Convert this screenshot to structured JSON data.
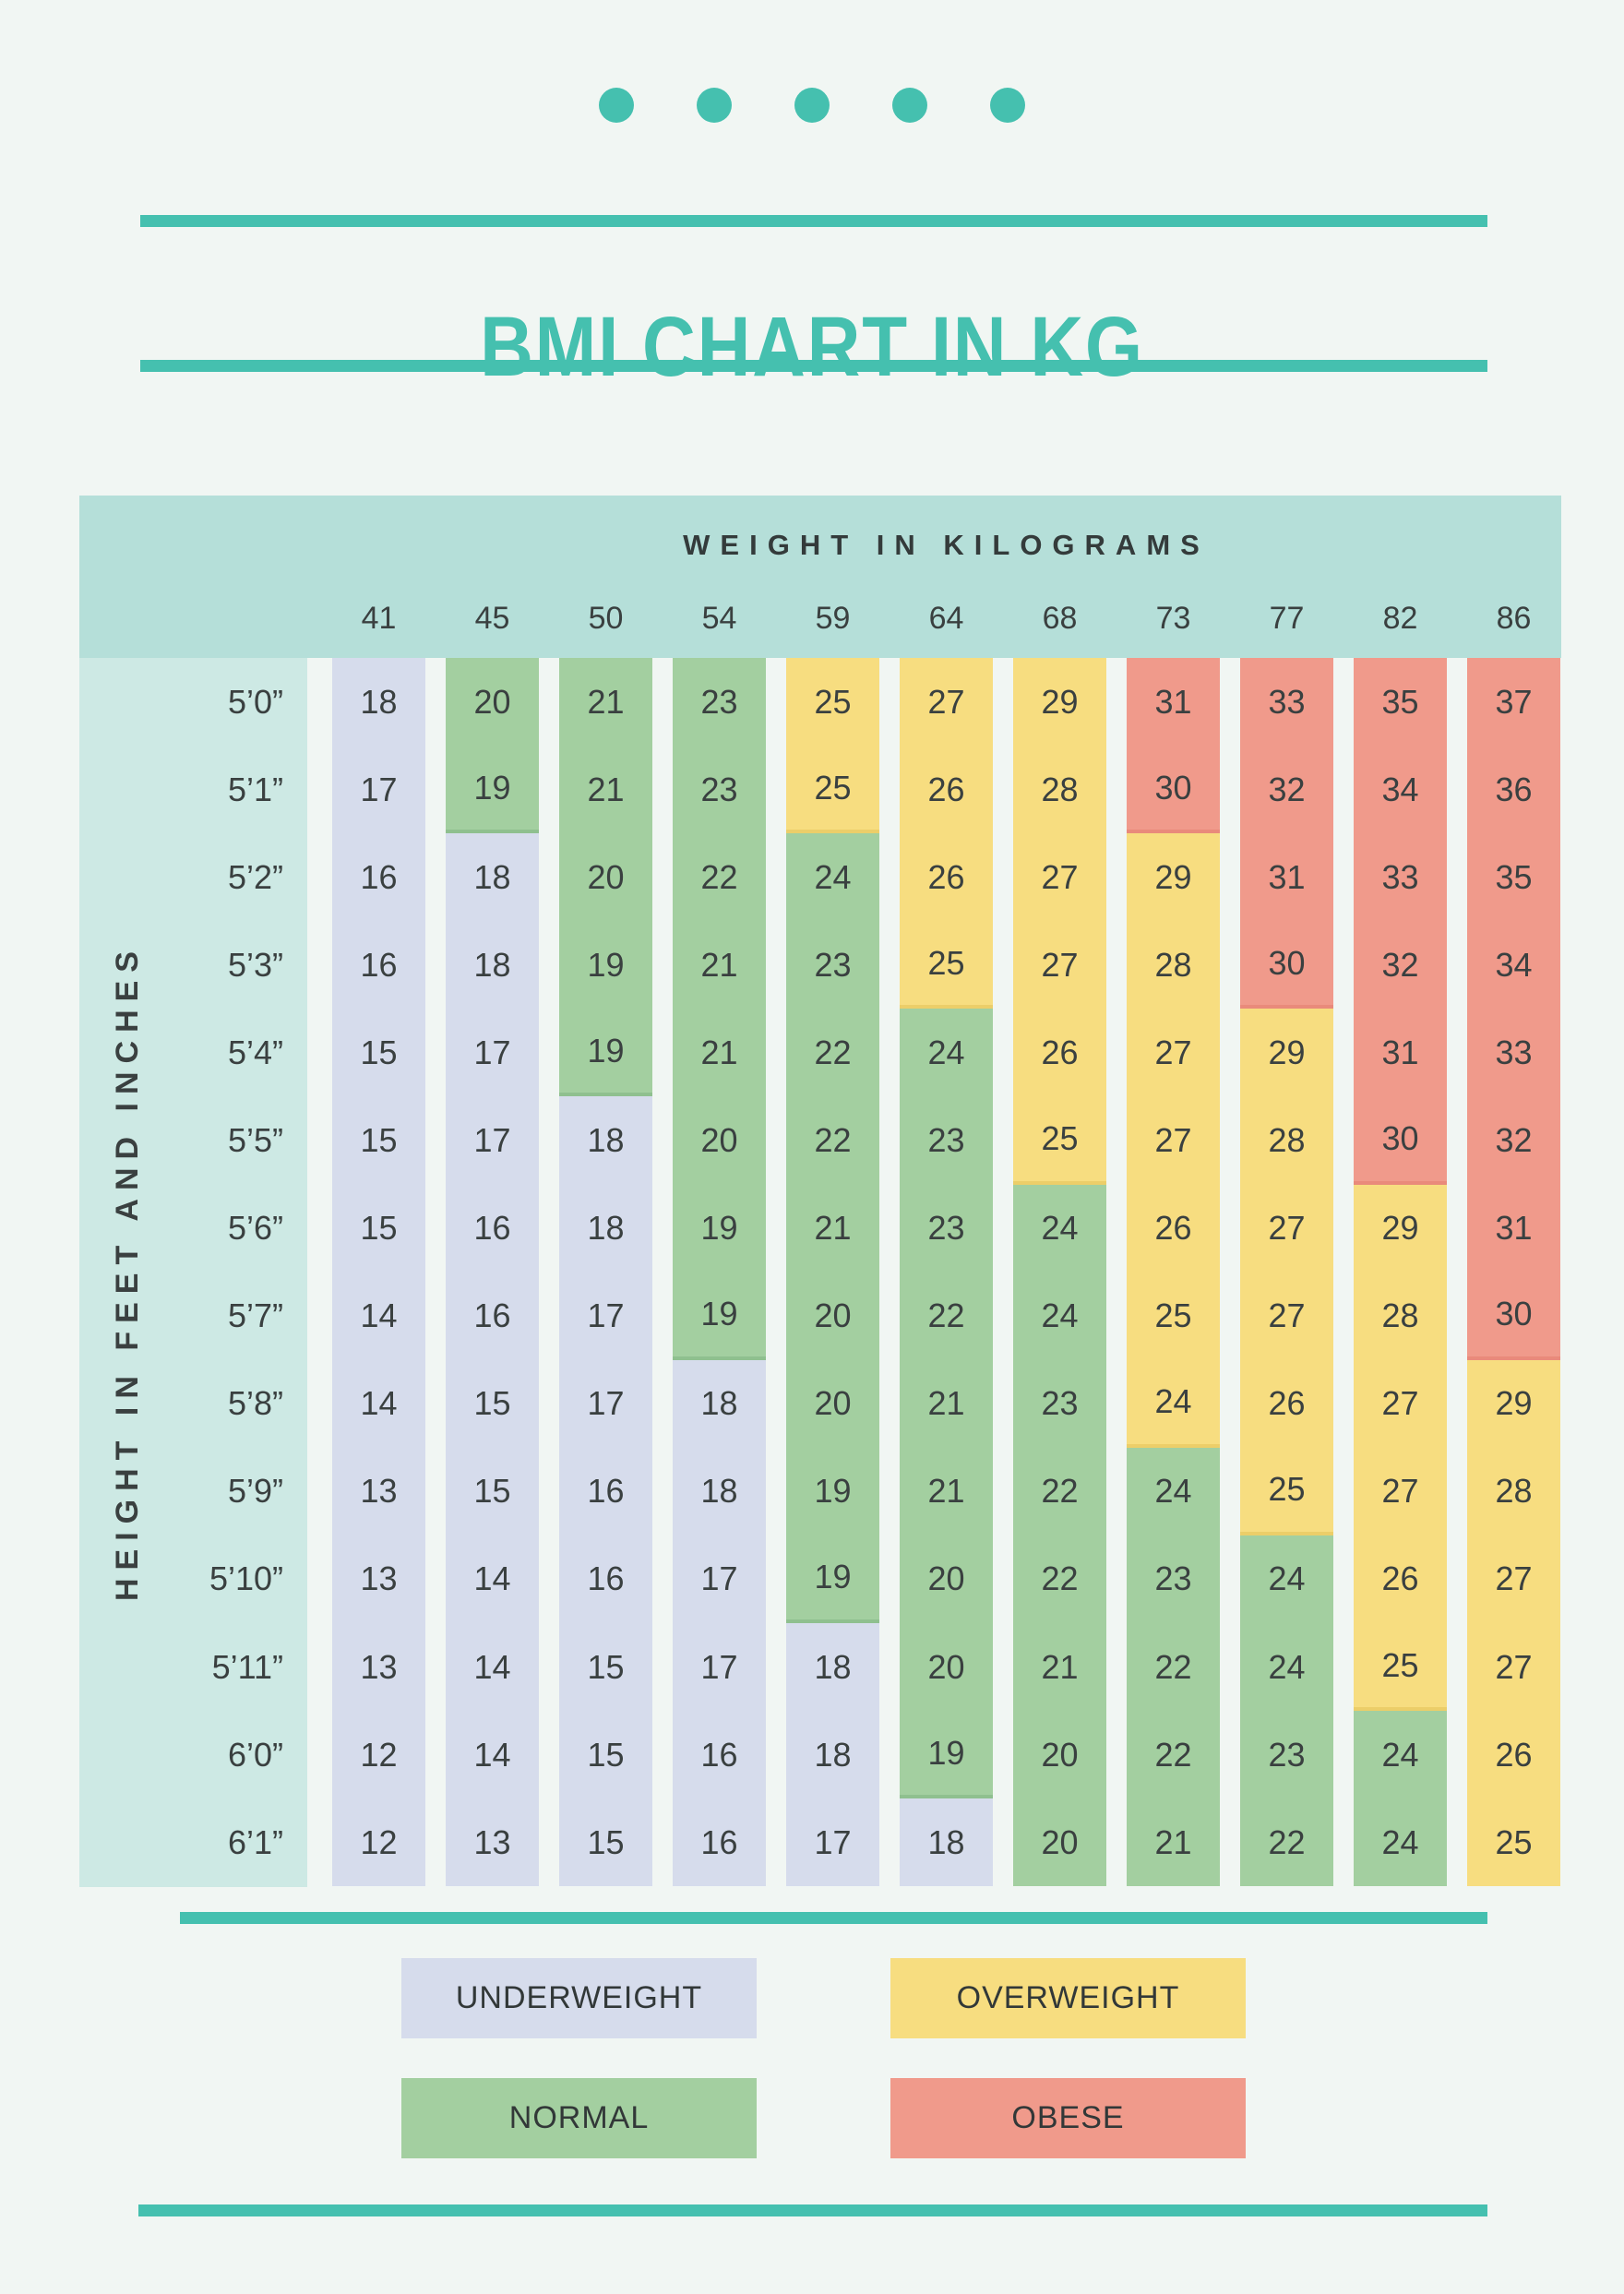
{
  "title": "BMI CHART IN KG",
  "decor": {
    "dot_count": 5
  },
  "colors": {
    "page_bg": "#f1f6f3",
    "accent_teal": "#45c0af",
    "table_header_bg": "#b5dfd9",
    "height_col_bg": "#cde9e4",
    "underweight": "#d6dcec",
    "normal": "#a3cfa0",
    "overweight": "#f7dd80",
    "obese": "#f09a8b",
    "text_dark": "#3a4040"
  },
  "table": {
    "weight_axis_label": "WEIGHT IN KILOGRAMS",
    "height_axis_label": "HEIGHT IN FEET AND INCHES"
  },
  "legend": [
    {
      "label": "UNDERWEIGHT",
      "category": "u"
    },
    {
      "label": "OVERWEIGHT",
      "category": "o"
    },
    {
      "label": "NORMAL",
      "category": "n"
    },
    {
      "label": "OBESE",
      "category": "b"
    }
  ],
  "chart_data": {
    "type": "heatmap",
    "title": "BMI CHART IN KG",
    "xlabel": "WEIGHT IN KILOGRAMS",
    "ylabel": "HEIGHT IN FEET AND INCHES",
    "x_weights_kg": [
      41,
      45,
      50,
      54,
      59,
      64,
      68,
      73,
      77,
      82,
      86
    ],
    "y_heights": [
      "5’0”",
      "5’1”",
      "5’2”",
      "5’3”",
      "5’4”",
      "5’5”",
      "5’6”",
      "5’7”",
      "5’8”",
      "5’9”",
      "5’10”",
      "5’11”",
      "6’0”",
      "6’1”"
    ],
    "bmi_values": [
      [
        18,
        20,
        21,
        23,
        25,
        27,
        29,
        31,
        33,
        35,
        37
      ],
      [
        17,
        19,
        21,
        23,
        25,
        26,
        28,
        30,
        32,
        34,
        36
      ],
      [
        16,
        18,
        20,
        22,
        24,
        26,
        27,
        29,
        31,
        33,
        35
      ],
      [
        16,
        18,
        19,
        21,
        23,
        25,
        27,
        28,
        30,
        32,
        34
      ],
      [
        15,
        17,
        19,
        21,
        22,
        24,
        26,
        27,
        29,
        31,
        33
      ],
      [
        15,
        17,
        18,
        20,
        22,
        23,
        25,
        27,
        28,
        30,
        32
      ],
      [
        15,
        16,
        18,
        19,
        21,
        23,
        24,
        26,
        27,
        29,
        31
      ],
      [
        14,
        16,
        17,
        19,
        20,
        22,
        24,
        25,
        27,
        28,
        30
      ],
      [
        14,
        15,
        17,
        18,
        20,
        21,
        23,
        24,
        26,
        27,
        29
      ],
      [
        13,
        15,
        16,
        18,
        19,
        21,
        22,
        24,
        25,
        27,
        28
      ],
      [
        13,
        14,
        16,
        17,
        19,
        20,
        22,
        23,
        24,
        26,
        27
      ],
      [
        13,
        14,
        15,
        17,
        18,
        20,
        21,
        22,
        24,
        25,
        27
      ],
      [
        12,
        14,
        15,
        16,
        18,
        19,
        20,
        22,
        23,
        24,
        26
      ],
      [
        12,
        13,
        15,
        16,
        17,
        18,
        20,
        21,
        22,
        24,
        25
      ]
    ],
    "cell_categories": [
      [
        "u",
        "n",
        "n",
        "n",
        "o",
        "o",
        "o",
        "b",
        "b",
        "b",
        "b"
      ],
      [
        "u",
        "n",
        "n",
        "n",
        "o",
        "o",
        "o",
        "b",
        "b",
        "b",
        "b"
      ],
      [
        "u",
        "u",
        "n",
        "n",
        "n",
        "o",
        "o",
        "o",
        "b",
        "b",
        "b"
      ],
      [
        "u",
        "u",
        "n",
        "n",
        "n",
        "o",
        "o",
        "o",
        "b",
        "b",
        "b"
      ],
      [
        "u",
        "u",
        "n",
        "n",
        "n",
        "n",
        "o",
        "o",
        "o",
        "b",
        "b"
      ],
      [
        "u",
        "u",
        "u",
        "n",
        "n",
        "n",
        "o",
        "o",
        "o",
        "b",
        "b"
      ],
      [
        "u",
        "u",
        "u",
        "n",
        "n",
        "n",
        "n",
        "o",
        "o",
        "o",
        "b"
      ],
      [
        "u",
        "u",
        "u",
        "n",
        "n",
        "n",
        "n",
        "o",
        "o",
        "o",
        "b"
      ],
      [
        "u",
        "u",
        "u",
        "u",
        "n",
        "n",
        "n",
        "o",
        "o",
        "o",
        "o"
      ],
      [
        "u",
        "u",
        "u",
        "u",
        "n",
        "n",
        "n",
        "n",
        "o",
        "o",
        "o"
      ],
      [
        "u",
        "u",
        "u",
        "u",
        "n",
        "n",
        "n",
        "n",
        "n",
        "o",
        "o"
      ],
      [
        "u",
        "u",
        "u",
        "u",
        "u",
        "n",
        "n",
        "n",
        "n",
        "o",
        "o"
      ],
      [
        "u",
        "u",
        "u",
        "u",
        "u",
        "n",
        "n",
        "n",
        "n",
        "n",
        "o"
      ],
      [
        "u",
        "u",
        "u",
        "u",
        "u",
        "u",
        "n",
        "n",
        "n",
        "n",
        "o"
      ]
    ],
    "category_labels": {
      "u": "UNDERWEIGHT",
      "n": "NORMAL",
      "o": "OVERWEIGHT",
      "b": "OBESE"
    },
    "legend_position": "bottom",
    "grid": false
  }
}
